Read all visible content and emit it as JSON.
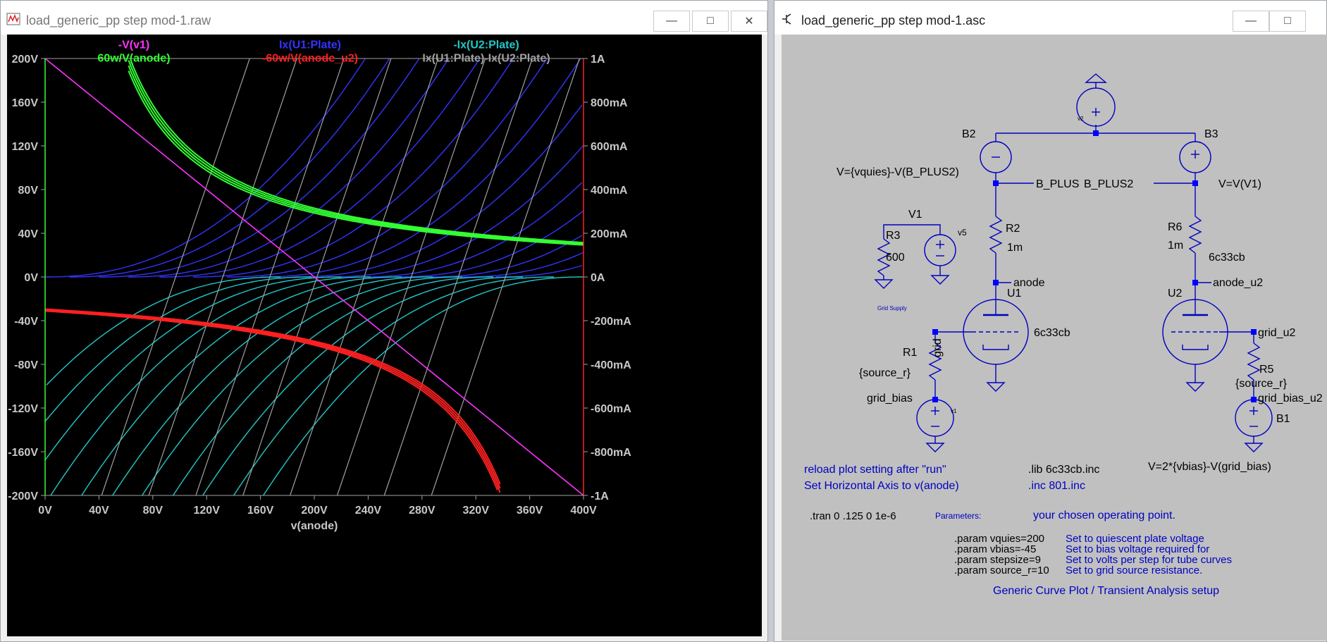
{
  "plot_window": {
    "title": "load_generic_pp step mod-1.raw",
    "traces": [
      {
        "label": "-V(v1)",
        "color": "#ff33ff"
      },
      {
        "label": "60w/V(anode)",
        "color": "#33ff33"
      },
      {
        "label": "Ix(U1:Plate)",
        "color": "#3333ff"
      },
      {
        "label": "-60w/V(anode_u2)",
        "color": "#ff2020"
      },
      {
        "label": "-Ix(U2:Plate)",
        "color": "#22c8c8"
      },
      {
        "label": "Ix(U1:Plate)-Ix(U2:Plate)",
        "color": "#a0a0a0"
      }
    ]
  },
  "chart_data": {
    "type": "line",
    "xlabel": "v(anode)",
    "x_ticks": [
      "0V",
      "40V",
      "80V",
      "120V",
      "160V",
      "200V",
      "240V",
      "280V",
      "320V",
      "360V",
      "400V"
    ],
    "y_left_ticks": [
      "200V",
      "160V",
      "120V",
      "80V",
      "40V",
      "0V",
      "-40V",
      "-80V",
      "-120V",
      "-160V",
      "-200V"
    ],
    "y_right_ticks": [
      "1A",
      "800mA",
      "600mA",
      "400mA",
      "200mA",
      "0A",
      "-200mA",
      "-400mA",
      "-600mA",
      "-800mA",
      "-1A"
    ],
    "xlim": [
      0,
      400
    ],
    "ylim_left": [
      -200,
      200
    ],
    "ylim_right": [
      -1,
      1
    ],
    "grid": false,
    "load_line": {
      "name": "-V(v1)",
      "points": [
        [
          0,
          200
        ],
        [
          400,
          -200
        ]
      ]
    },
    "power_hyperbola_u1": {
      "name": "60w/V(anode)",
      "watts": 60,
      "x_range": [
        62,
        400
      ]
    },
    "power_hyperbola_u2": {
      "name": "-60w/V(anode_u2)",
      "watts": -60,
      "x_range": [
        0,
        338
      ]
    },
    "u1_plate_curves": {
      "name": "Ix(U1:Plate)",
      "start_x_voltages": [
        0,
        18,
        40,
        62,
        85,
        110,
        135,
        160,
        185,
        210,
        235,
        260,
        285,
        310,
        335
      ]
    },
    "u2_plate_curves": {
      "name": "-Ix(U2:Plate)",
      "end_x_voltages": [
        400,
        378,
        355,
        333,
        310,
        288,
        265,
        242,
        220,
        198,
        175
      ]
    },
    "composite_lines": {
      "name": "Ix(U1:Plate)-Ix(U2:Plate)",
      "bottom_x_voltages": [
        42,
        77,
        112,
        147,
        182,
        217,
        252,
        287
      ],
      "top_x_voltages": [
        152,
        187,
        222,
        257,
        292,
        327,
        362,
        397
      ]
    }
  },
  "schematic_window": {
    "title": "load_generic_pp step mod-1.asc",
    "labels": {
      "b2": "B2",
      "b3": "B3",
      "b1": "B1",
      "v1": "V1",
      "v2": "v2",
      "v5": "v5",
      "v1_small": "v1",
      "b2_value": "V={vquies}-V(B_PLUS2)",
      "b3_value": "V=V(V1)",
      "b1_value": "V=2*{vbias}-V(grid_bias)",
      "b_plus": "B_PLUS",
      "b_plus2": "B_PLUS2",
      "r2": "R2",
      "r2_value": "1m",
      "r6": "R6",
      "r6_value": "1m",
      "r3": "R3",
      "r3_value": "600",
      "r1": "R1",
      "r1_value": "{source_r}",
      "r5": "R5",
      "r5_value": "{source_r}",
      "u1": "U1",
      "u1_model": "6c33cb",
      "u2": "U2",
      "u2_model": "6c33cb",
      "anode": "anode",
      "anode_u2": "anode_u2",
      "grid": "grid",
      "grid_u2": "grid_u2",
      "grid_supply": "Grid Supply",
      "grid_bias": "grid_bias",
      "grid_bias_u2": "grid_bias_u2"
    },
    "comments": {
      "reload": "reload plot setting after \"run\"",
      "axis": "Set Horizontal Axis to v(anode)",
      "lib": ".lib 6c33cb.inc",
      "inc": ".inc 801.inc",
      "tran": ".tran 0 .125 0 1e-6",
      "parameters": "Parameters:",
      "operating_point": "your chosen operating point.",
      "footer": "Generic Curve Plot / Transient Analysis setup"
    },
    "params": [
      {
        "directive": ".param vquies=200",
        "note": "Set to quiescent plate voltage"
      },
      {
        "directive": ".param vbias=-45",
        "note": "Set to bias voltage required for"
      },
      {
        "directive": ".param stepsize=9",
        "note": "Set to volts per step for tube curves"
      },
      {
        "directive": ".param source_r=10",
        "note": "Set to grid source resistance."
      }
    ]
  }
}
